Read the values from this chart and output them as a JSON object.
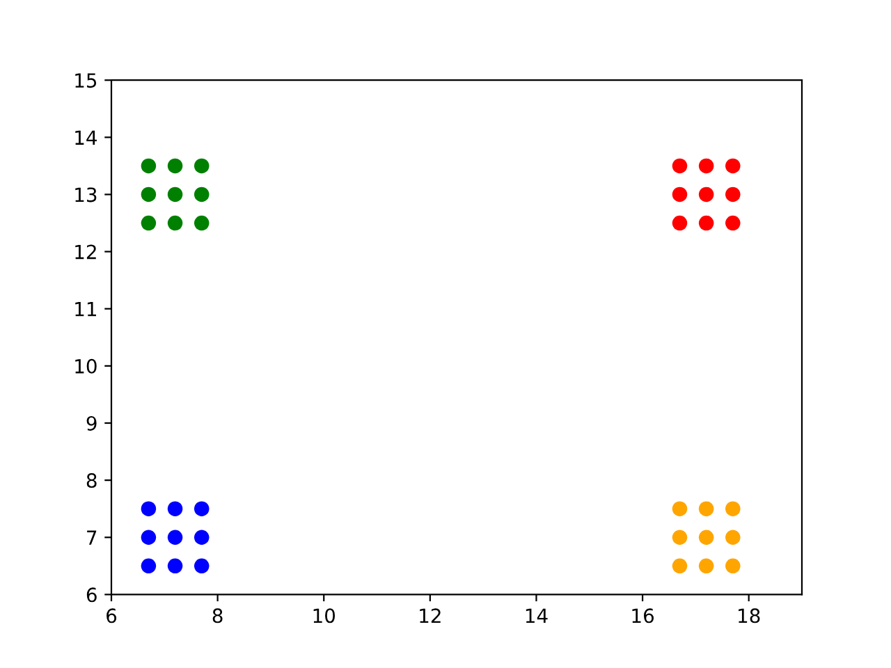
{
  "chart_data": {
    "type": "scatter",
    "series": [
      {
        "color": "#0000ff",
        "x": [
          6.7,
          7.2,
          7.7,
          6.7,
          7.2,
          7.7,
          6.7,
          7.2,
          7.7
        ],
        "values": [
          6.5,
          6.5,
          6.5,
          7,
          7,
          7,
          7.5,
          7.5,
          7.5
        ]
      },
      {
        "color": "#008000",
        "x": [
          6.7,
          7.2,
          7.7,
          6.7,
          7.2,
          7.7,
          6.7,
          7.2,
          7.7
        ],
        "values": [
          12.5,
          12.5,
          12.5,
          13,
          13,
          13,
          13.5,
          13.5,
          13.5
        ]
      },
      {
        "color": "#ffa500",
        "x": [
          16.7,
          17.2,
          17.7,
          16.7,
          17.2,
          17.7,
          16.7,
          17.2,
          17.7
        ],
        "values": [
          6.5,
          6.5,
          6.5,
          7,
          7,
          7,
          7.5,
          7.5,
          7.5
        ]
      },
      {
        "color": "#ff0000",
        "x": [
          16.7,
          17.2,
          17.7,
          16.7,
          17.2,
          17.7,
          16.7,
          17.2,
          17.7
        ],
        "values": [
          12.5,
          12.5,
          12.5,
          13,
          13,
          13,
          13.5,
          13.5,
          13.5
        ]
      }
    ],
    "xlim": [
      6,
      19
    ],
    "xticks": [
      6,
      8,
      10,
      12,
      14,
      16,
      18
    ],
    "ylim": [
      6,
      15
    ],
    "yticks": [
      6,
      7,
      8,
      9,
      10,
      11,
      12,
      13,
      14,
      15
    ],
    "marker": "circle",
    "grid": false
  }
}
